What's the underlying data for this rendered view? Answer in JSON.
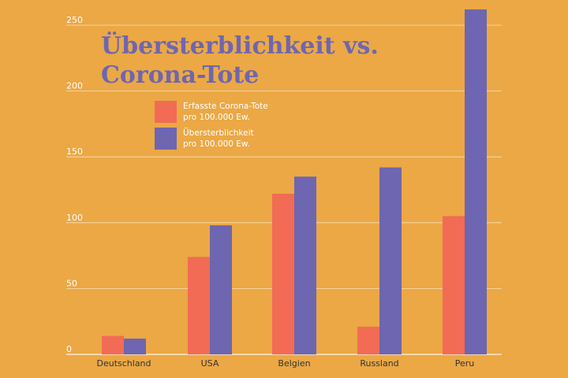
{
  "chart_data": {
    "type": "bar",
    "title_line1": "Übersterblichkeit vs.",
    "title_line2": "Corona-Tote",
    "categories": [
      "Deutschland",
      "USA",
      "Belgien",
      "Russland",
      "Peru"
    ],
    "series": [
      {
        "name": "Erfasste Corona-Tote pro 100.000 Ew.",
        "line1": "Erfasste Corona-Tote",
        "line2": "pro 100.000 Ew.",
        "color": "#F26B54",
        "values": [
          14,
          74,
          122,
          21,
          105
        ]
      },
      {
        "name": "Übersterblichkeit pro 100.000 Ew.",
        "line1": "Übersterblichkeit",
        "line2": "pro 100.000 Ew.",
        "color": "#6E66B0",
        "values": [
          12,
          98,
          135,
          142,
          262
        ]
      }
    ],
    "yticks": [
      "0",
      "50",
      "100",
      "150",
      "200",
      "250"
    ],
    "ylim": [
      0,
      260
    ],
    "xlabel": "",
    "ylabel": "",
    "grid": true,
    "legend_position": "top-left"
  }
}
